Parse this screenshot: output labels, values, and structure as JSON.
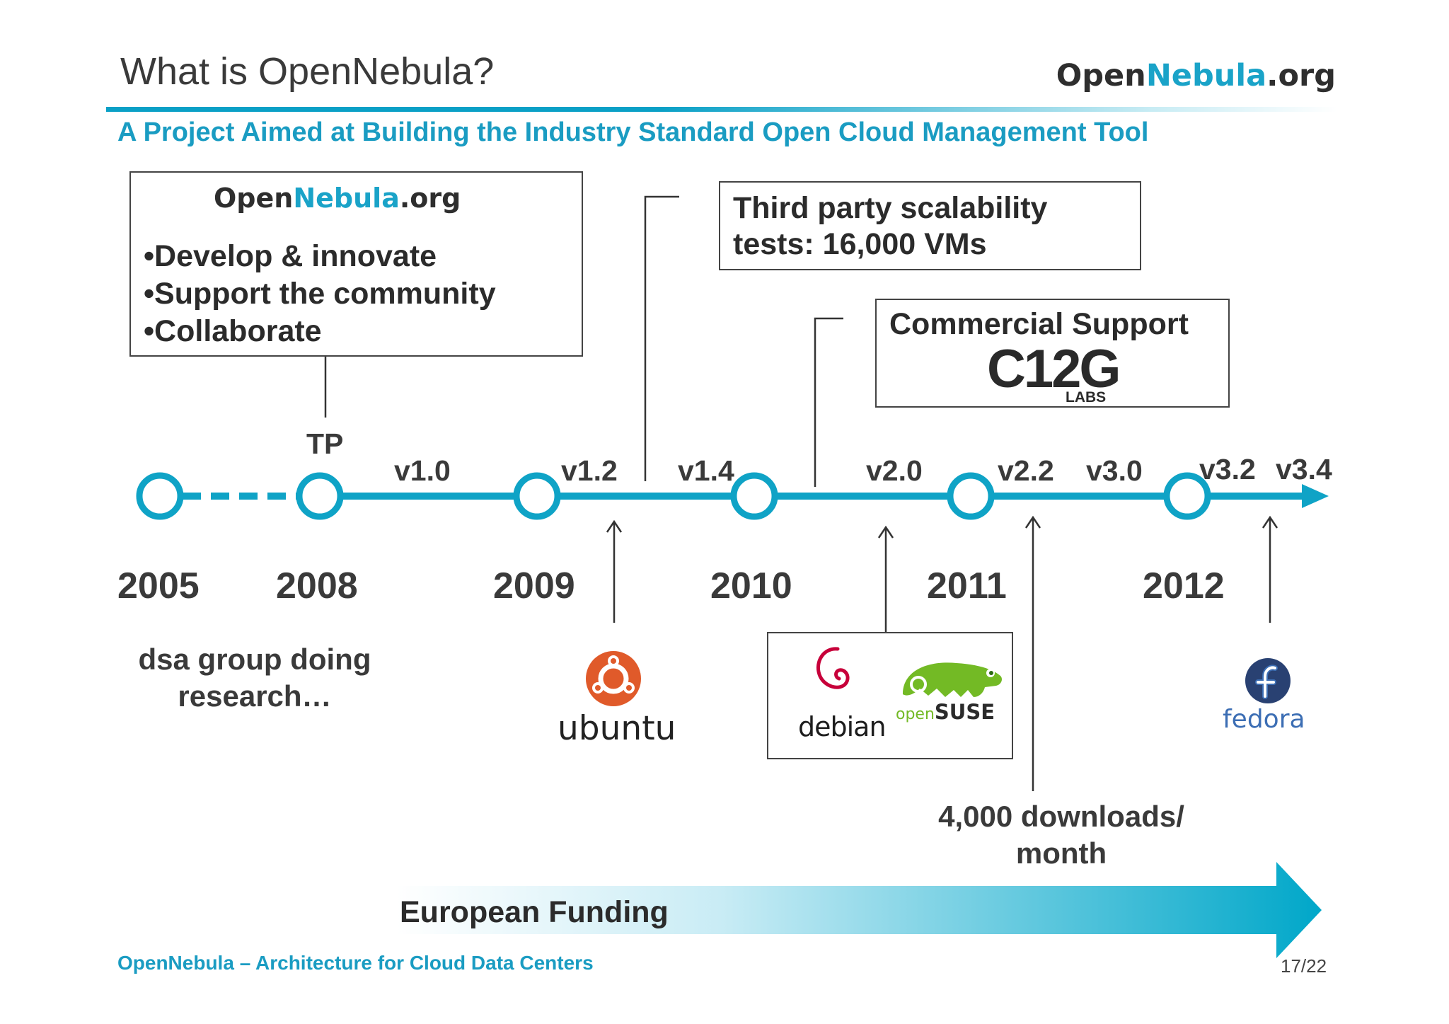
{
  "header": {
    "title": "What is OpenNebula?",
    "logo": {
      "part1": "Open",
      "part2": "Nebula",
      "part3": ".org"
    },
    "subtitle": "A Project Aimed at Building the Industry Standard Open Cloud Management Tool"
  },
  "box_main": {
    "logo": {
      "part1": "Open",
      "part2": "Nebula",
      "part3": ".org"
    },
    "bullets": [
      "•Develop & innovate",
      "•Support the community",
      "•Collaborate"
    ]
  },
  "box_scalability": {
    "line1": "Third party scalability",
    "line2": "tests: 16,000 VMs"
  },
  "box_commercial": {
    "heading": "Commercial Support",
    "brand": "C12G",
    "brand_sub": "LABS"
  },
  "timeline": {
    "tp_label": "TP",
    "versions": [
      "v1.0",
      "v1.2",
      "v1.4",
      "v2.0",
      "v2.2",
      "v3.0",
      "v3.2",
      "v3.4"
    ],
    "years": [
      "2005",
      "2008",
      "2009",
      "2010",
      "2011",
      "2012"
    ]
  },
  "notes": {
    "research_line1": "dsa group doing",
    "research_line2": "research…",
    "downloads_line1": "4,000 downloads/",
    "downloads_line2": "month"
  },
  "distros": {
    "ubuntu": "ubuntu",
    "debian": "debian",
    "opensuse_a": "open",
    "opensuse_b": "SUSE",
    "fedora": "fedora"
  },
  "funding": "European Funding",
  "footer": {
    "left": "OpenNebula – Architecture for Cloud Data Centers",
    "page": "17/22"
  },
  "colors": {
    "accent": "#1aa3c8",
    "text": "#333333",
    "ubuntu": "#e05a2a",
    "opensuse": "#73ba25",
    "fedora": "#294172",
    "debian": "#c7003a"
  }
}
